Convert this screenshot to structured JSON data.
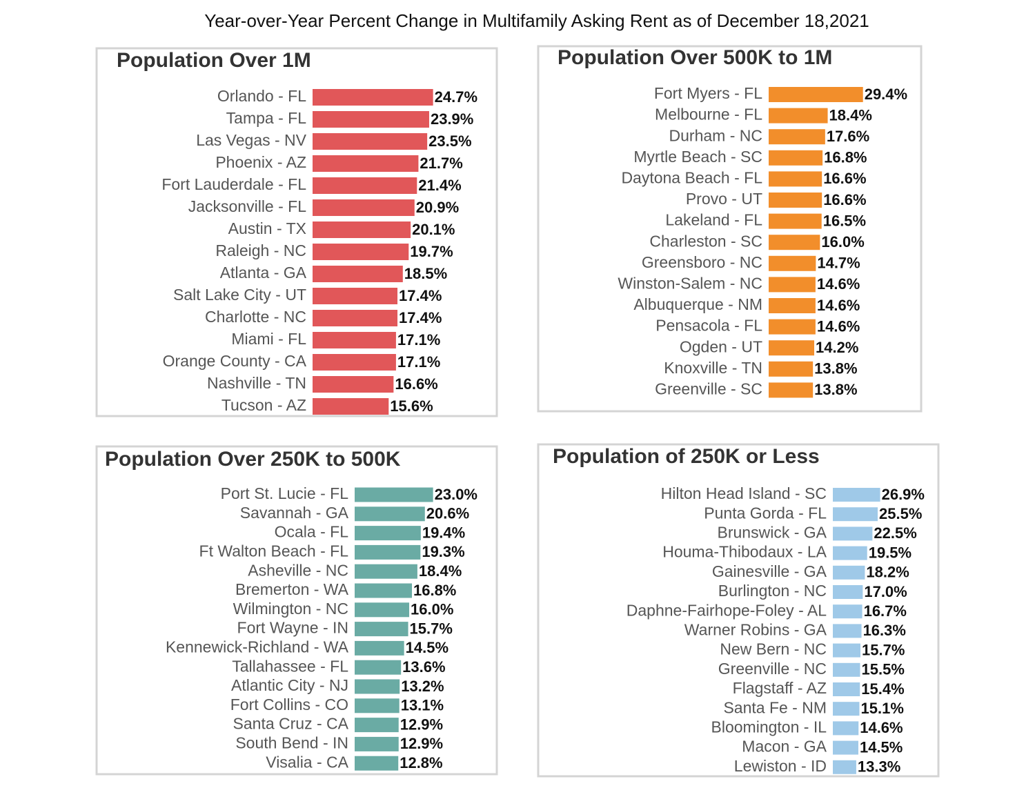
{
  "title": "Year-over-Year Percent Change in Multifamily Asking Rent as of December 18,2021",
  "chart_data": [
    {
      "type": "bar",
      "orientation": "horizontal",
      "title": "Population Over 1M",
      "color": "#e15759",
      "categories": [
        "Orlando - FL",
        "Tampa - FL",
        "Las Vegas - NV",
        "Phoenix - AZ",
        "Fort Lauderdale - FL",
        "Jacksonville - FL",
        "Austin - TX",
        "Raleigh - NC",
        "Atlanta - GA",
        "Salt Lake City - UT",
        "Charlotte - NC",
        "Miami - FL",
        "Orange County - CA",
        "Nashville - TN",
        "Tucson - AZ"
      ],
      "values": [
        24.7,
        23.9,
        23.5,
        21.7,
        21.4,
        20.9,
        20.1,
        19.7,
        18.5,
        17.4,
        17.4,
        17.1,
        17.1,
        16.6,
        15.6
      ],
      "value_labels": [
        "24.7%",
        "23.9%",
        "23.5%",
        "21.7%",
        "21.4%",
        "20.9%",
        "20.1%",
        "19.7%",
        "18.5%",
        "17.4%",
        "17.4%",
        "17.1%",
        "17.1%",
        "16.6%",
        "15.6%"
      ]
    },
    {
      "type": "bar",
      "orientation": "horizontal",
      "title": "Population Over 500K to 1M",
      "color": "#f28e2b",
      "categories": [
        "Fort Myers - FL",
        "Melbourne - FL",
        "Durham - NC",
        "Myrtle Beach - SC",
        "Daytona Beach - FL",
        "Provo - UT",
        "Lakeland - FL",
        "Charleston - SC",
        "Greensboro - NC",
        "Winston-Salem - NC",
        "Albuquerque - NM",
        "Pensacola - FL",
        "Ogden - UT",
        "Knoxville - TN",
        "Greenville - SC"
      ],
      "values": [
        29.4,
        18.4,
        17.6,
        16.8,
        16.6,
        16.6,
        16.5,
        16.0,
        14.7,
        14.6,
        14.6,
        14.6,
        14.2,
        13.8,
        13.8
      ],
      "value_labels": [
        "29.4%",
        "18.4%",
        "17.6%",
        "16.8%",
        "16.6%",
        "16.6%",
        "16.5%",
        "16.0%",
        "14.7%",
        "14.6%",
        "14.6%",
        "14.6%",
        "14.2%",
        "13.8%",
        "13.8%"
      ]
    },
    {
      "type": "bar",
      "orientation": "horizontal",
      "title": "Population Over 250K to 500K",
      "color": "#6aaba4",
      "categories": [
        "Port St. Lucie - FL",
        "Savannah - GA",
        "Ocala - FL",
        "Ft Walton Beach - FL",
        "Asheville - NC",
        "Bremerton - WA",
        "Wilmington - NC",
        "Fort Wayne - IN",
        "Kennewick-Richland - WA",
        "Tallahassee - FL",
        "Atlantic City - NJ",
        "Fort Collins - CO",
        "Santa Cruz - CA",
        "South Bend - IN",
        "Visalia - CA"
      ],
      "values": [
        23.0,
        20.6,
        19.4,
        19.3,
        18.4,
        16.8,
        16.0,
        15.7,
        14.5,
        13.6,
        13.2,
        13.1,
        12.9,
        12.9,
        12.8
      ],
      "value_labels": [
        "23.0%",
        "20.6%",
        "19.4%",
        "19.3%",
        "18.4%",
        "16.8%",
        "16.0%",
        "15.7%",
        "14.5%",
        "13.6%",
        "13.2%",
        "13.1%",
        "12.9%",
        "12.9%",
        "12.8%"
      ]
    },
    {
      "type": "bar",
      "orientation": "horizontal",
      "title": "Population of 250K or Less",
      "color": "#9fc9e8",
      "categories": [
        "Hilton Head Island - SC",
        "Punta Gorda - FL",
        "Brunswick - GA",
        "Houma-Thibodaux - LA",
        "Gainesville - GA",
        "Burlington - NC",
        "Daphne-Fairhope-Foley - AL",
        "Warner Robins - GA",
        "New Bern - NC",
        "Greenville - NC",
        "Flagstaff - AZ",
        "Santa Fe - NM",
        "Bloomington - IL",
        "Macon - GA",
        "Lewiston - ID"
      ],
      "values": [
        26.9,
        25.5,
        22.5,
        19.5,
        18.2,
        17.0,
        16.7,
        16.3,
        15.7,
        15.5,
        15.4,
        15.1,
        14.6,
        14.5,
        13.3
      ],
      "value_labels": [
        "26.9%",
        "25.5%",
        "22.5%",
        "19.5%",
        "18.2%",
        "17.0%",
        "16.7%",
        "16.3%",
        "15.7%",
        "15.5%",
        "15.4%",
        "15.1%",
        "14.6%",
        "14.5%",
        "13.3%"
      ]
    }
  ]
}
